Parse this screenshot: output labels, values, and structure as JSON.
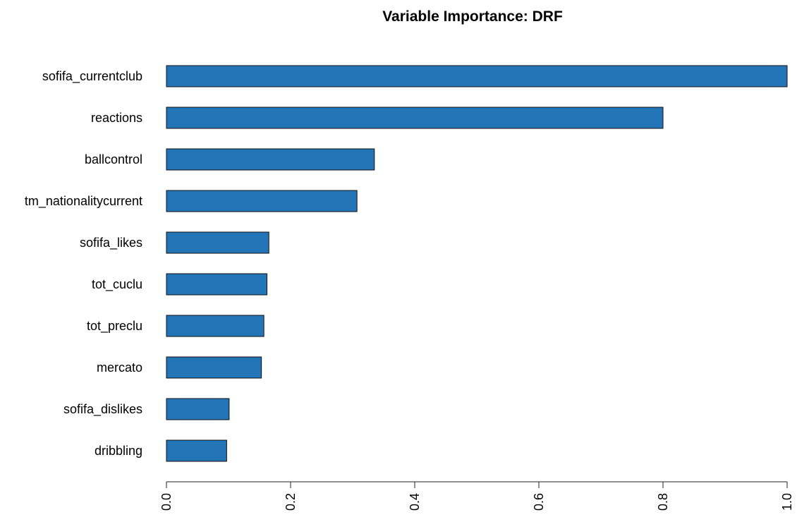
{
  "chart_data": {
    "type": "bar",
    "orientation": "horizontal",
    "title": "Variable Importance: DRF",
    "xlabel": "",
    "ylabel": "",
    "categories": [
      "sofifa_currentclub",
      "reactions",
      "ballcontrol",
      "tm_nationalitycurrent",
      "sofifa_likes",
      "tot_cuclu",
      "tot_preclu",
      "mercato",
      "sofifa_dislikes",
      "dribbling"
    ],
    "values": [
      1.0,
      0.8,
      0.335,
      0.307,
      0.165,
      0.162,
      0.157,
      0.153,
      0.101,
      0.097
    ],
    "xlim": [
      0,
      1.0
    ],
    "xticks": [
      "0.0",
      "0.2",
      "0.4",
      "0.6",
      "0.8",
      "1.0"
    ],
    "bar_color": "#2474b8",
    "grid": false,
    "legend": "none"
  }
}
